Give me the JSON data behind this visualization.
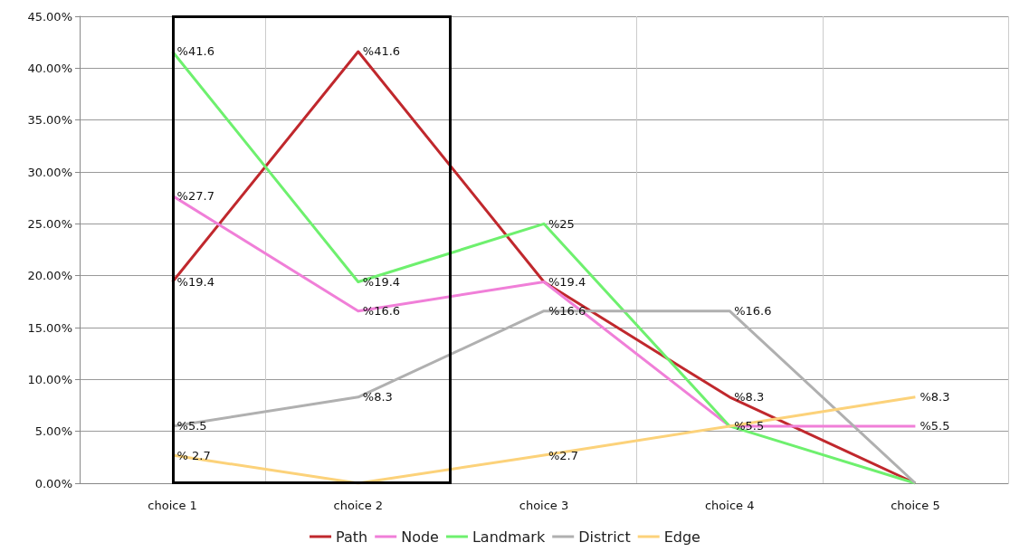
{
  "chart_data": {
    "type": "line",
    "categories": [
      "choice 1",
      "choice 2",
      "choice 3",
      "choice 4",
      "choice 5"
    ],
    "series": [
      {
        "name": "Path",
        "color": "#c0282d",
        "values": [
          19.4,
          41.6,
          19.4,
          8.3,
          0
        ],
        "value_labels": [
          "%19.4",
          "%41.6",
          null,
          "%8.3",
          null
        ]
      },
      {
        "name": "Node",
        "color": "#f07fd8",
        "values": [
          27.7,
          16.6,
          19.4,
          5.5,
          5.5
        ],
        "value_labels": [
          "%27.7",
          "%16.6",
          "%19.4",
          "%5.5",
          "%5.5"
        ]
      },
      {
        "name": "Landmark",
        "color": "#6ef06e",
        "values": [
          41.6,
          19.4,
          25,
          5.5,
          0
        ],
        "value_labels": [
          "%41.6",
          "%19.4",
          "%25",
          null,
          null
        ]
      },
      {
        "name": "District",
        "color": "#b0b0b0",
        "values": [
          5.5,
          8.3,
          16.6,
          16.6,
          0
        ],
        "value_labels": [
          "%5.5",
          "%8.3",
          "%16.6",
          "%16.6",
          null
        ]
      },
      {
        "name": "Edge",
        "color": "#fcd27a",
        "values": [
          2.7,
          0,
          2.7,
          5.5,
          8.3
        ],
        "value_labels": [
          "% 2.7",
          null,
          "%2.7",
          null,
          "%8.3"
        ]
      }
    ],
    "ylim": [
      0,
      45
    ],
    "yticks": [
      {
        "value": 0,
        "label": "0.00%"
      },
      {
        "value": 5,
        "label": "5.00%"
      },
      {
        "value": 10,
        "label": "10.00%"
      },
      {
        "value": 15,
        "label": "15.00%"
      },
      {
        "value": 20,
        "label": "20.00%"
      },
      {
        "value": 25,
        "label": "25.00%"
      },
      {
        "value": 30,
        "label": "30.00%"
      },
      {
        "value": 35,
        "label": "35.00%"
      },
      {
        "value": 40,
        "label": "40.00%"
      },
      {
        "value": 45,
        "label": "45.00%"
      }
    ],
    "grid": true,
    "legend": "bottom",
    "marker": "none",
    "line_style": "solid"
  }
}
